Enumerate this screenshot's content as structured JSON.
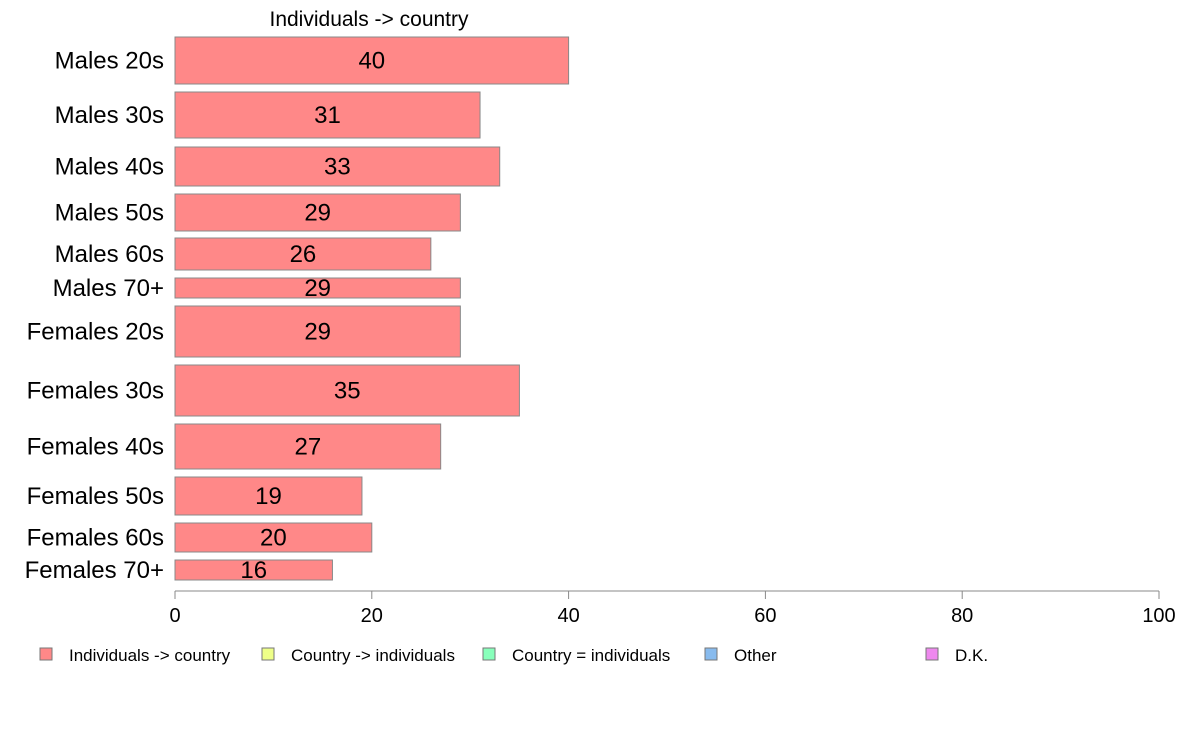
{
  "chart_data": {
    "type": "bar",
    "orientation": "horizontal",
    "title": "Individuals -> country",
    "categories": [
      "Males 20s",
      "Males 30s",
      "Males 40s",
      "Males 50s",
      "Males 60s",
      "Males 70+",
      "Females 20s",
      "Females 30s",
      "Females 40s",
      "Females 50s",
      "Females 60s",
      "Females 70+"
    ],
    "series": [
      {
        "name": "Individuals -> country",
        "values": [
          40,
          31,
          33,
          29,
          26,
          29,
          29,
          35,
          27,
          19,
          20,
          16
        ]
      }
    ],
    "data_labels": [
      "40",
      "31",
      "33",
      "29",
      "26",
      "29",
      "29",
      "35",
      "27",
      "19",
      "20",
      "16"
    ],
    "xlim": [
      0,
      100
    ],
    "xticks": [
      0,
      20,
      40,
      60,
      80,
      100
    ],
    "grid": false,
    "legend": {
      "placement": "bottom",
      "items": [
        {
          "label": "Individuals -> country",
          "color": "#ff8888"
        },
        {
          "label": "Country -> individuals",
          "color": "#eeff88"
        },
        {
          "label": "Country = individuals",
          "color": "#88ffbb"
        },
        {
          "label": "Other",
          "color": "#88bbee"
        },
        {
          "label": "D.K.",
          "color": "#ee88ee"
        }
      ]
    },
    "bar_color": "#ff8888",
    "bar_stroke": "#888888"
  }
}
